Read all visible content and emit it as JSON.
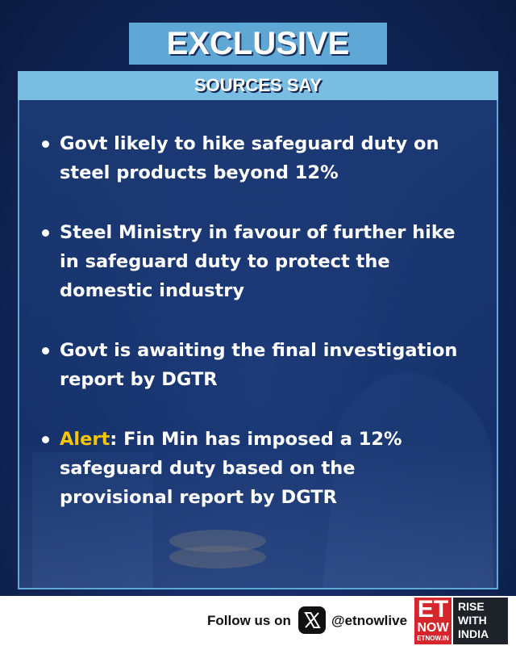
{
  "header": {
    "title": "EXCLUSIVE",
    "subtitle": "SOURCES SAY"
  },
  "bullets": [
    {
      "text": "Govt likely to hike safeguard duty on steel products beyond 12%"
    },
    {
      "text": "Steel Ministry in favour of further hike in safeguard duty to protect the domestic industry"
    },
    {
      "text": "Govt is awaiting the final investigation report by DGTR"
    },
    {
      "highlight": "Alert",
      "text": ": Fin Min has imposed a 12% safeguard duty based on the provisional report by DGTR"
    }
  ],
  "footer": {
    "follow": "Follow us on",
    "handle": "@etnowlive",
    "logo": {
      "et": "ET",
      "now": "NOW",
      "site": "ETNOW.IN"
    },
    "tagline": [
      "RISE",
      "WITH",
      "INDIA"
    ]
  }
}
